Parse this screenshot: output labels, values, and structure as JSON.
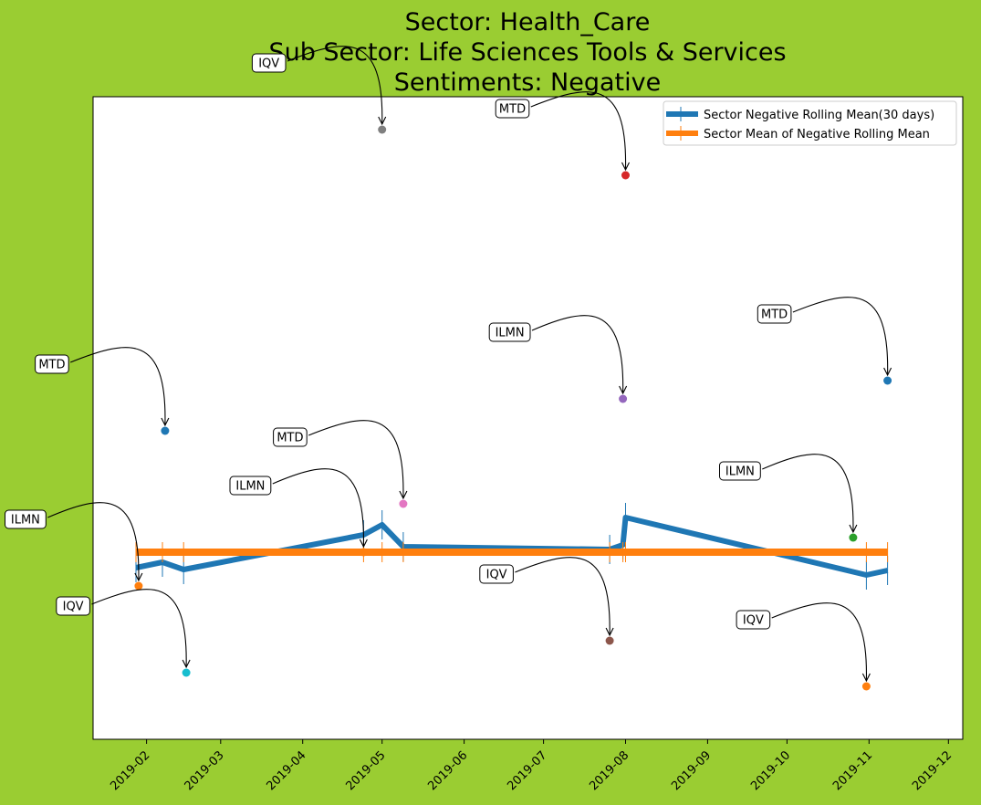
{
  "chart_data": {
    "type": "line",
    "title": [
      "Sector:  Health_Care",
      "Sub Sector:  Life Sciences Tools & Services",
      "Sentiments:  Negative"
    ],
    "xlabel": "",
    "ylabel": "",
    "x_ticks": [
      "2019-02",
      "2019-03",
      "2019-04",
      "2019-05",
      "2019-06",
      "2019-07",
      "2019-08",
      "2019-09",
      "2019-10",
      "2019-11",
      "2019-12"
    ],
    "y_ticks": [],
    "grid": false,
    "legend_position": "top-right",
    "colors": {
      "background": "#9acd32",
      "rolling": "#1f77b4",
      "mean": "#ff7f0e"
    },
    "series": [
      {
        "name": "Sector Negative Rolling Mean(30 days)",
        "color": "#1f77b4",
        "points": [
          {
            "x": "2019-01-28",
            "y": -0.05
          },
          {
            "x": "2019-02-07",
            "y": -0.044
          },
          {
            "x": "2019-02-15",
            "y": -0.052
          },
          {
            "x": "2019-04-24",
            "y": -0.014
          },
          {
            "x": "2019-05-01",
            "y": -0.003
          },
          {
            "x": "2019-05-09",
            "y": -0.027
          },
          {
            "x": "2019-07-26",
            "y": -0.03
          },
          {
            "x": "2019-07-31",
            "y": -0.025
          },
          {
            "x": "2019-08-01",
            "y": 0.005
          },
          {
            "x": "2019-10-31",
            "y": -0.058
          },
          {
            "x": "2019-11-08",
            "y": -0.053
          }
        ]
      },
      {
        "name": "Sector Mean of Negative Rolling Mean",
        "color": "#ff7f0e",
        "points": [
          {
            "x": "2019-01-28",
            "y": -0.033
          },
          {
            "x": "2019-11-08",
            "y": -0.033
          }
        ],
        "tick_dates": [
          "2019-01-28",
          "2019-02-07",
          "2019-02-15",
          "2019-04-24",
          "2019-05-01",
          "2019-05-09",
          "2019-07-26",
          "2019-07-31",
          "2019-08-01",
          "2019-10-31",
          "2019-11-08"
        ]
      }
    ],
    "annotations": [
      {
        "label": "ILMN",
        "x": "2019-01-29",
        "y": -0.07,
        "color": "#ff7f0e"
      },
      {
        "label": "MTD",
        "x": "2019-02-08",
        "y": 0.1,
        "color": "#1f77b4"
      },
      {
        "label": "IQV",
        "x": "2019-02-16",
        "y": -0.165,
        "color": "#17becf"
      },
      {
        "label": "ILMN",
        "x": "2019-04-24",
        "y": -0.033,
        "color": "#ff7f0e"
      },
      {
        "label": "IQV",
        "x": "2019-05-01",
        "y": 0.43,
        "color": "#7f7f7f"
      },
      {
        "label": "MTD",
        "x": "2019-05-09",
        "y": 0.02,
        "color": "#e377c2"
      },
      {
        "label": "IQV",
        "x": "2019-07-26",
        "y": -0.13,
        "color": "#8c564b"
      },
      {
        "label": "ILMN",
        "x": "2019-07-31",
        "y": 0.135,
        "color": "#9467bd"
      },
      {
        "label": "MTD",
        "x": "2019-08-01",
        "y": 0.38,
        "color": "#d62728"
      },
      {
        "label": "ILMN",
        "x": "2019-10-26",
        "y": -0.017,
        "color": "#2ca02c"
      },
      {
        "label": "IQV",
        "x": "2019-10-31",
        "y": -0.18,
        "color": "#ff7f0e"
      },
      {
        "label": "MTD",
        "x": "2019-11-08",
        "y": 0.155,
        "color": "#1f77b4"
      }
    ]
  }
}
